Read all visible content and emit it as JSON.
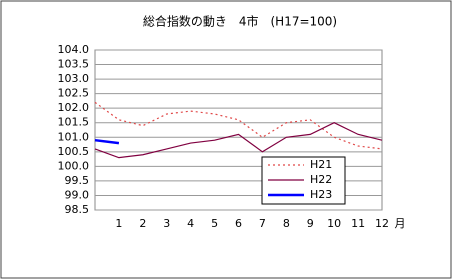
{
  "chart_data": {
    "type": "line",
    "title": "総合指数の動き　4市　(H17=100)",
    "x_unit": "月",
    "categories": [
      null,
      "1",
      "2",
      "3",
      "4",
      "5",
      "6",
      "7",
      "8",
      "9",
      "10",
      "11",
      "12"
    ],
    "series": [
      {
        "name": "H21",
        "color": "#e04848",
        "dash": true,
        "values": [
          102.2,
          101.6,
          101.4,
          101.8,
          101.9,
          101.8,
          101.6,
          101.0,
          101.5,
          101.6,
          101.0,
          100.7,
          100.6
        ]
      },
      {
        "name": "H22",
        "color": "#800040",
        "dash": false,
        "values": [
          100.6,
          100.3,
          100.4,
          100.6,
          100.8,
          100.9,
          101.1,
          100.5,
          101.0,
          101.1,
          101.5,
          101.1,
          100.9
        ]
      },
      {
        "name": "H23",
        "color": "#0000ff",
        "dash": false,
        "values": [
          100.9,
          100.8,
          null,
          null,
          null,
          null,
          null,
          null,
          null,
          null,
          null,
          null,
          null
        ]
      }
    ],
    "ylim": [
      98.5,
      104.0
    ],
    "yticks": [
      98.5,
      {
        "value": 99.0,
        "label": "99.0"
      },
      99.5,
      {
        "value": 100.0,
        "label": "100.0"
      },
      100.5,
      {
        "value": 101.0,
        "label": "101.0"
      },
      101.5,
      {
        "value": 102.0,
        "label": "102.0"
      },
      102.5,
      {
        "value": 103.0,
        "label": "103.0"
      },
      103.5,
      {
        "value": 104.0,
        "label": "104.0"
      }
    ],
    "grid": true,
    "legend": "lower right"
  }
}
